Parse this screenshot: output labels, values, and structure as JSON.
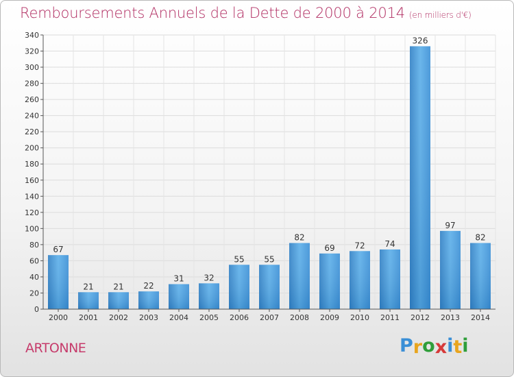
{
  "title": "Remboursements Annuels de la Dette de 2000 à 2014",
  "subtitle": "(en milliers d'€)",
  "commune": "ARTONNE",
  "logo": {
    "letters": [
      "P",
      "r",
      "o",
      "x",
      "i",
      "t",
      "i"
    ],
    "colors": [
      "#3a8fd6",
      "#e8a51f",
      "#2f9e3a",
      "#d63a3a",
      "#3a8fd6",
      "#e8a51f",
      "#2f9e3a"
    ]
  },
  "chart_data": {
    "type": "bar",
    "categories": [
      "2000",
      "2001",
      "2002",
      "2003",
      "2004",
      "2005",
      "2006",
      "2007",
      "2008",
      "2009",
      "2010",
      "2011",
      "2012",
      "2013",
      "2014"
    ],
    "values": [
      67,
      21,
      21,
      22,
      31,
      32,
      55,
      55,
      82,
      69,
      72,
      74,
      326,
      97,
      82
    ],
    "ylim": [
      0,
      340
    ],
    "yticks": [
      0,
      20,
      40,
      60,
      80,
      100,
      120,
      140,
      160,
      180,
      200,
      220,
      240,
      260,
      280,
      300,
      320,
      340
    ],
    "grid": true,
    "bar_color": "#3d8fd3"
  }
}
